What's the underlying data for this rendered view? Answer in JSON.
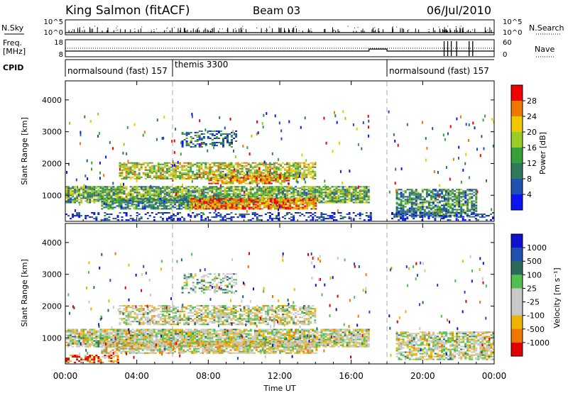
{
  "header": {
    "station": "King Salmon (fitACF)",
    "beam": "Beam 03",
    "date": "06/Jul/2010"
  },
  "side_labels": {
    "nsky": "N.Sky",
    "nsearch": "N.Search",
    "freq_line1": "Freq.",
    "freq_line2": "[MHz]",
    "nave": "Nave",
    "cpid": "CPID"
  },
  "xaxis": {
    "label": "Time UT",
    "ticks": [
      "00:00",
      "04:00",
      "08:00",
      "12:00",
      "16:00",
      "20:00",
      "00:00"
    ]
  },
  "panel_labels": {
    "y_label": "Slant Range [km]",
    "power_cbar_label": "Power [dB]",
    "velocity_cbar_label": "Velocity [m s⁻¹]"
  },
  "colors": {
    "power": [
      "#0a14f0",
      "#2050b0",
      "#2e7a5a",
      "#38a038",
      "#9ccc24",
      "#f0c800",
      "#f07800",
      "#f00000"
    ],
    "velocity": [
      "#e00000",
      "#f07800",
      "#f0b400",
      "#c8c8c8",
      "#c8c8c8",
      "#50c050",
      "#2a6a5a",
      "#2050b0",
      "#1010d0"
    ],
    "ground_scatter": "#b4b4b4"
  },
  "chart_data": [
    {
      "type": "line",
      "name": "noise-panel",
      "title": "",
      "left_ticks": [
        "10^5",
        "10^0"
      ],
      "right_ticks": [
        "10^5",
        "10^0"
      ],
      "series": [
        {
          "name": "N.Sky",
          "style": "solid"
        },
        {
          "name": "N.Search",
          "style": "dotted"
        }
      ]
    },
    {
      "type": "line",
      "name": "frequency-nave-panel",
      "left_ticks": [
        "18",
        "8"
      ],
      "right_ticks": [
        "60",
        "0"
      ],
      "series": [
        {
          "name": "Freq.",
          "style": "solid",
          "x": [
            0,
            17.0,
            17.0,
            18.0,
            18.0,
            24.0
          ],
          "y": [
            11.2,
            11.2,
            12.5,
            12.5,
            11.2,
            11.2
          ]
        },
        {
          "name": "Nave",
          "style": "dotted",
          "x": [
            0,
            24.0
          ],
          "y": [
            30,
            30
          ]
        }
      ]
    },
    {
      "type": "table",
      "name": "cpid-segments",
      "segments": [
        {
          "label": "normalsound (fast) 157",
          "start": 0.0,
          "end": 6.0
        },
        {
          "label": "themis 3300",
          "start": 6.0,
          "end": 18.0
        },
        {
          "label": "normalsound (fast) 157",
          "start": 18.0,
          "end": 24.0
        }
      ]
    },
    {
      "type": "heatmap",
      "name": "power-panel",
      "ylabel": "Slant Range [km]",
      "xlabel": "",
      "xlim": [
        0,
        24
      ],
      "ylim": [
        180,
        4600
      ],
      "yticks": [
        1000,
        2000,
        3000,
        4000
      ],
      "colorbar": {
        "label": "Power [dB]",
        "ticks": [
          4,
          8,
          12,
          16,
          20,
          24,
          28
        ],
        "range": [
          0,
          30
        ]
      },
      "regions": [
        {
          "t0": 0.0,
          "t1": 17.0,
          "r0": 750,
          "r1": 1250,
          "level": 0.45,
          "density": 0.85
        },
        {
          "t0": 2.0,
          "t1": 10.0,
          "r0": 550,
          "r1": 900,
          "level": 0.35,
          "density": 0.75
        },
        {
          "t0": 7.0,
          "t1": 14.0,
          "r0": 550,
          "r1": 900,
          "level": 0.8,
          "density": 0.85
        },
        {
          "t0": 3.0,
          "t1": 14.0,
          "r0": 1500,
          "r1": 2000,
          "level": 0.6,
          "density": 0.7
        },
        {
          "t0": 8.0,
          "t1": 12.5,
          "r0": 1350,
          "r1": 1650,
          "level": 0.7,
          "density": 0.7
        },
        {
          "t0": 6.5,
          "t1": 9.5,
          "r0": 2500,
          "r1": 3000,
          "level": 0.25,
          "density": 0.45
        },
        {
          "t0": 18.5,
          "t1": 23.0,
          "r0": 300,
          "r1": 1200,
          "level": 0.35,
          "density": 0.75
        },
        {
          "t0": 0.0,
          "t1": 24.0,
          "r0": 200,
          "r1": 450,
          "level": 0.1,
          "density": 0.35
        }
      ]
    },
    {
      "type": "heatmap",
      "name": "velocity-panel",
      "ylabel": "Slant Range [km]",
      "xlabel": "Time UT",
      "xlim": [
        0,
        24
      ],
      "ylim": [
        180,
        4600
      ],
      "yticks": [
        1000,
        2000,
        3000,
        4000
      ],
      "colorbar": {
        "label": "Velocity [m s⁻¹]",
        "ticks": [
          "1000",
          "500",
          "100",
          "25",
          "-25",
          "-100",
          "-500",
          "-1000"
        ]
      },
      "regions": [
        {
          "t0": 0.0,
          "t1": 17.0,
          "r0": 700,
          "r1": 1250,
          "level": 0.45,
          "density": 0.85
        },
        {
          "t0": 2.0,
          "t1": 14.0,
          "r0": 500,
          "r1": 900,
          "level": 0.4,
          "density": 0.75
        },
        {
          "t0": 3.0,
          "t1": 14.0,
          "r0": 1400,
          "r1": 2000,
          "level": 0.45,
          "density": 0.65
        },
        {
          "t0": 6.5,
          "t1": 9.5,
          "r0": 2400,
          "r1": 3000,
          "level": 0.55,
          "density": 0.4
        },
        {
          "t0": 18.5,
          "t1": 24.0,
          "r0": 300,
          "r1": 1200,
          "level": 0.45,
          "density": 0.7
        },
        {
          "t0": 0.0,
          "t1": 3.0,
          "r0": 200,
          "r1": 450,
          "level": 0.15,
          "density": 0.5
        }
      ]
    }
  ]
}
